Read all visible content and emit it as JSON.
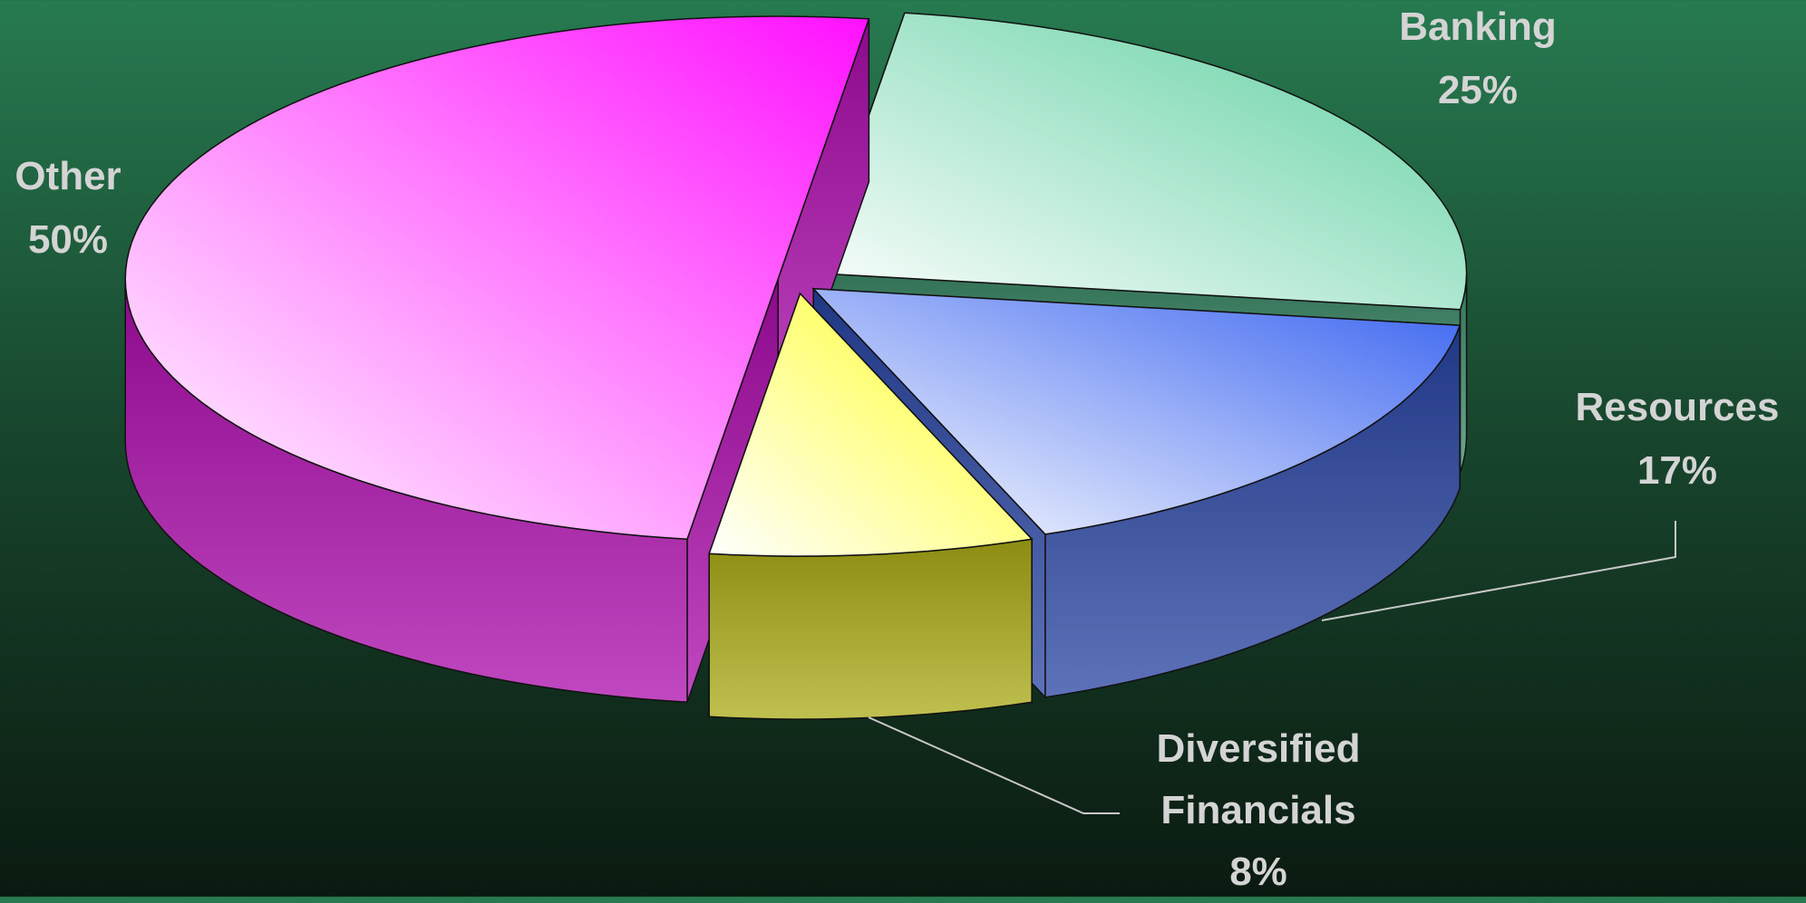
{
  "chart_data": {
    "type": "pie",
    "categories": [
      "Banking",
      "Resources",
      "Diversified Financials",
      "Other"
    ],
    "values": [
      25,
      17,
      8,
      50
    ],
    "value_labels": [
      "25%",
      "17%",
      "8%",
      "50%"
    ],
    "colors": [
      "#5ccf9f",
      "#3a64f0",
      "#ffff20",
      "#ff10ff"
    ]
  }
}
